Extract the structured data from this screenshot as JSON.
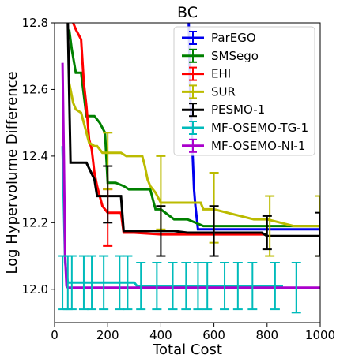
{
  "chart_data": {
    "type": "line",
    "title": "BC",
    "xlabel": "Total Cost",
    "ylabel": "Log Hypervolume Difference",
    "xlim": [
      0,
      1000
    ],
    "ylim": [
      11.9,
      12.8
    ],
    "xticks": [
      0,
      200,
      400,
      600,
      800,
      1000
    ],
    "yticks": [
      12.0,
      12.2,
      12.4,
      12.6,
      12.8
    ],
    "xtick_labels": [
      "0",
      "200",
      "400",
      "600",
      "800",
      "1000"
    ],
    "ytick_labels": [
      "12.0",
      "12.2",
      "12.4",
      "12.6",
      "12.8"
    ],
    "legend_position": "top-right",
    "grid": false,
    "series": [
      {
        "name": "ParEGO",
        "color": "#0000ee",
        "x": [
          505,
          510,
          515,
          520,
          525,
          530,
          540,
          560,
          600,
          700,
          800,
          900,
          1000
        ],
        "y": [
          12.8,
          12.6,
          12.5,
          12.4,
          12.3,
          12.25,
          12.18,
          12.18,
          12.18,
          12.18,
          12.18,
          12.18,
          12.18
        ],
        "errorbars": []
      },
      {
        "name": "SMSego",
        "color": "#008000",
        "x": [
          55,
          65,
          80,
          100,
          120,
          150,
          170,
          190,
          200,
          230,
          260,
          280,
          300,
          360,
          370,
          380,
          400,
          450,
          500,
          530,
          560,
          600,
          700,
          800,
          850,
          1000
        ],
        "y": [
          12.78,
          12.72,
          12.65,
          12.65,
          12.52,
          12.52,
          12.5,
          12.47,
          12.32,
          12.32,
          12.31,
          12.3,
          12.3,
          12.3,
          12.27,
          12.24,
          12.24,
          12.21,
          12.21,
          12.2,
          12.19,
          12.19,
          12.19,
          12.19,
          12.19,
          12.19
        ],
        "errorbars": []
      },
      {
        "name": "EHI",
        "color": "#ff0000",
        "x": [
          70,
          80,
          100,
          110,
          120,
          130,
          140,
          150,
          160,
          170,
          180,
          190,
          200,
          210,
          250,
          260,
          300,
          400,
          500,
          600,
          700,
          800
        ],
        "y": [
          12.8,
          12.78,
          12.75,
          12.62,
          12.55,
          12.45,
          12.42,
          12.35,
          12.31,
          12.28,
          12.25,
          12.24,
          12.23,
          12.23,
          12.23,
          12.17,
          12.17,
          12.165,
          12.165,
          12.165,
          12.165,
          12.165
        ],
        "errorbars": [
          {
            "x": 200,
            "low": 12.13,
            "high": 12.3
          }
        ]
      },
      {
        "name": "SUR",
        "color": "#bbbb00",
        "x": [
          55,
          70,
          80,
          100,
          110,
          130,
          150,
          160,
          180,
          200,
          250,
          270,
          330,
          340,
          350,
          360,
          370,
          380,
          400,
          450,
          500,
          550,
          560,
          600,
          650,
          700,
          750,
          800,
          850,
          900,
          950,
          1000
        ],
        "y": [
          12.62,
          12.56,
          12.54,
          12.53,
          12.5,
          12.44,
          12.43,
          12.43,
          12.41,
          12.41,
          12.41,
          12.4,
          12.4,
          12.37,
          12.33,
          12.31,
          12.3,
          12.29,
          12.26,
          12.26,
          12.26,
          12.26,
          12.24,
          12.24,
          12.23,
          12.22,
          12.21,
          12.21,
          12.2,
          12.19,
          12.19,
          12.19
        ],
        "errorbars": [
          {
            "x": 200,
            "low": 12.3,
            "high": 12.47
          },
          {
            "x": 400,
            "low": 12.18,
            "high": 12.4
          },
          {
            "x": 600,
            "low": 12.14,
            "high": 12.35
          },
          {
            "x": 810,
            "low": 12.1,
            "high": 12.28
          },
          {
            "x": 1000,
            "low": 12.1,
            "high": 12.28
          }
        ]
      },
      {
        "name": "PESMO-1",
        "color": "#000000",
        "x": [
          50,
          60,
          70,
          80,
          120,
          150,
          160,
          200,
          250,
          260,
          300,
          350,
          400,
          450,
          500,
          550,
          600,
          700,
          780,
          800,
          850,
          1000
        ],
        "y": [
          12.8,
          12.38,
          12.38,
          12.38,
          12.38,
          12.33,
          12.28,
          12.28,
          12.28,
          12.175,
          12.175,
          12.175,
          12.175,
          12.175,
          12.17,
          12.17,
          12.17,
          12.17,
          12.17,
          12.16,
          12.16,
          12.16
        ],
        "errorbars": [
          {
            "x": 200,
            "low": 12.2,
            "high": 12.37
          },
          {
            "x": 400,
            "low": 12.1,
            "high": 12.25
          },
          {
            "x": 600,
            "low": 12.1,
            "high": 12.25
          },
          {
            "x": 800,
            "low": 12.12,
            "high": 12.22
          },
          {
            "x": 1000,
            "low": 12.1,
            "high": 12.23
          }
        ]
      },
      {
        "name": "MF-OSEMO-TG-1",
        "color": "#00bbbb",
        "x": [
          30,
          40,
          50,
          100,
          200,
          300,
          310,
          400,
          500,
          600,
          700,
          800,
          860
        ],
        "y": [
          12.43,
          12.08,
          12.02,
          12.02,
          12.02,
          12.02,
          12.01,
          12.01,
          12.01,
          12.01,
          12.01,
          12.01,
          12.01
        ],
        "errorbars": [
          {
            "x": 30,
            "low": 11.94,
            "high": 12.1
          },
          {
            "x": 50,
            "low": 11.94,
            "high": 12.1
          },
          {
            "x": 65,
            "low": 11.94,
            "high": 12.1
          },
          {
            "x": 110,
            "low": 11.94,
            "high": 12.1
          },
          {
            "x": 140,
            "low": 11.94,
            "high": 12.1
          },
          {
            "x": 185,
            "low": 11.94,
            "high": 12.1
          },
          {
            "x": 245,
            "low": 11.94,
            "high": 12.1
          },
          {
            "x": 275,
            "low": 11.94,
            "high": 12.1
          },
          {
            "x": 325,
            "low": 11.94,
            "high": 12.08
          },
          {
            "x": 385,
            "low": 11.94,
            "high": 12.08
          },
          {
            "x": 445,
            "low": 11.94,
            "high": 12.08
          },
          {
            "x": 495,
            "low": 11.94,
            "high": 12.08
          },
          {
            "x": 540,
            "low": 11.94,
            "high": 12.08
          },
          {
            "x": 575,
            "low": 11.94,
            "high": 12.08
          },
          {
            "x": 640,
            "low": 11.94,
            "high": 12.08
          },
          {
            "x": 690,
            "low": 11.94,
            "high": 12.08
          },
          {
            "x": 745,
            "low": 11.94,
            "high": 12.08
          },
          {
            "x": 830,
            "low": 11.94,
            "high": 12.08
          },
          {
            "x": 910,
            "low": 11.93,
            "high": 12.08
          }
        ]
      },
      {
        "name": "MF-OSEMO-NI-1",
        "color": "#aa00cc",
        "x": [
          30,
          35,
          40,
          45,
          50,
          100,
          200,
          400,
          600,
          800,
          1000
        ],
        "y": [
          12.68,
          12.4,
          12.1,
          12.01,
          12.005,
          12.005,
          12.005,
          12.005,
          12.005,
          12.005,
          12.005
        ],
        "errorbars": []
      }
    ]
  }
}
